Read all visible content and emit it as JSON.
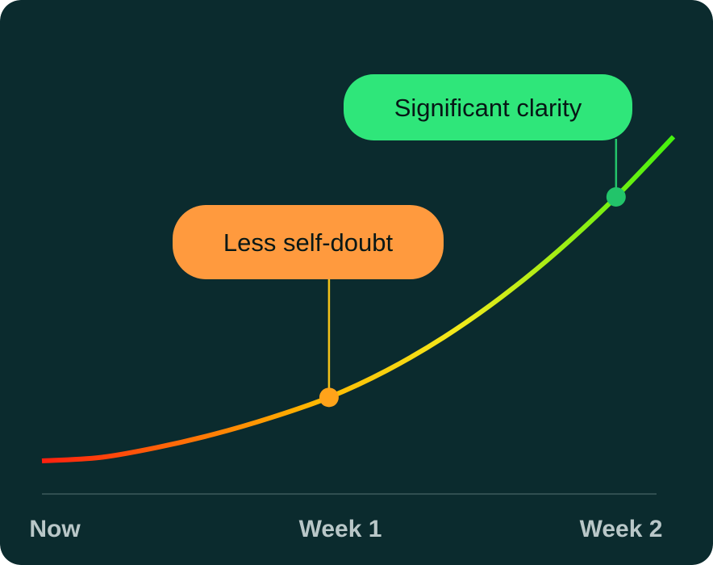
{
  "colors": {
    "background": "#0b2b2e",
    "baseline": "#3d5a5c",
    "tick_text": "#b9c7c8",
    "curve_start": "#ff1f0f",
    "curve_mid": "#ffb400",
    "curve_mid2": "#f3ea1b",
    "curve_end": "#43f20e",
    "callout_week1": "#ff9a3e",
    "callout_week2": "#2fe67a",
    "connector_week1": "#f2c21a",
    "connector_week2": "#24c46a",
    "dot_week1": "#ffa31a",
    "dot_week2": "#22c46a",
    "callout_text": "#071716"
  },
  "chart_data": {
    "type": "line",
    "title": "",
    "xlabel": "",
    "ylabel": "",
    "categories": [
      "Now",
      "Week 1",
      "Week 2"
    ],
    "x_tick_labels": [
      "Now",
      "Week 1",
      "Week 2"
    ],
    "xlim": [
      0,
      2.2
    ],
    "ylim": [
      0,
      1
    ],
    "grid": false,
    "series": [
      {
        "x": [
          0,
          0.2,
          0.4,
          0.6,
          0.8,
          1.0,
          1.2,
          1.4,
          1.6,
          1.8,
          2.0,
          2.2
        ],
        "y": [
          0.0,
          0.01,
          0.04,
          0.08,
          0.13,
          0.19,
          0.27,
          0.37,
          0.49,
          0.63,
          0.79,
          0.97
        ]
      }
    ],
    "annotations": [
      {
        "label": "Less self-doubt",
        "x": 1.0,
        "y": 0.19
      },
      {
        "label": "Significant clarity",
        "x": 2.0,
        "y": 0.79
      }
    ]
  }
}
